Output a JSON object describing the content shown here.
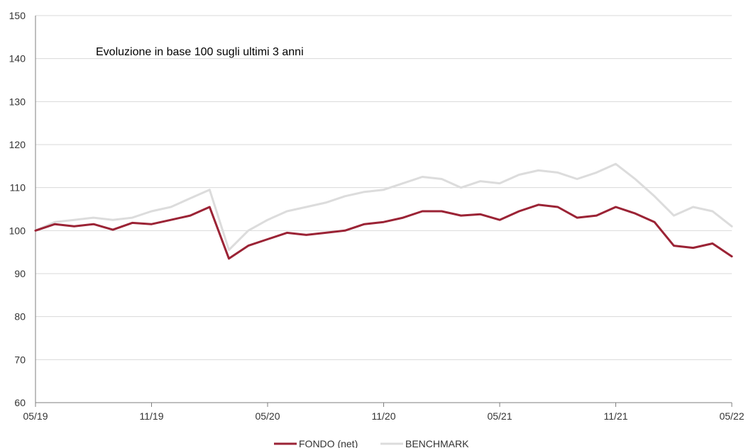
{
  "chart_data": {
    "type": "line",
    "title": "Evoluzione in base 100 sugli ultimi 3 anni",
    "xlabel": "",
    "ylabel": "",
    "x_ticks": [
      "05/19",
      "11/19",
      "05/20",
      "11/20",
      "05/21",
      "11/21",
      "05/22"
    ],
    "ylim": [
      60,
      150
    ],
    "y_ticks": [
      "60",
      "70",
      "80",
      "90",
      "100",
      "110",
      "120",
      "130",
      "140",
      "150"
    ],
    "grid": "horizontal",
    "legend_position": "bottom",
    "colors": {
      "fondo": "#9b2335",
      "benchmark": "#dcdcdc",
      "grid": "#d9d9d9",
      "axis": "#7f7f7f"
    },
    "x": [
      "05/19",
      "06/19",
      "07/19",
      "08/19",
      "09/19",
      "10/19",
      "11/19",
      "12/19",
      "01/20",
      "02/20",
      "03/20",
      "04/20",
      "05/20",
      "06/20",
      "07/20",
      "08/20",
      "09/20",
      "10/20",
      "11/20",
      "12/20",
      "01/21",
      "02/21",
      "03/21",
      "04/21",
      "05/21",
      "06/21",
      "07/21",
      "08/21",
      "09/21",
      "10/21",
      "11/21",
      "12/21",
      "01/22",
      "02/22",
      "03/22",
      "04/22",
      "05/22"
    ],
    "series": [
      {
        "name": "FONDO (net)",
        "values": [
          100,
          101.5,
          101,
          101.5,
          100.2,
          101.8,
          101.5,
          102.5,
          103.5,
          105.5,
          93.5,
          96.5,
          98,
          99.5,
          99,
          99.5,
          100,
          101.5,
          102,
          103,
          104.5,
          104.5,
          103.5,
          103.8,
          102.5,
          104.5,
          106,
          105.5,
          103,
          103.5,
          105.5,
          104,
          102,
          96.5,
          96,
          97,
          94
        ]
      },
      {
        "name": "BENCHMARK",
        "values": [
          100,
          102,
          102.5,
          103,
          102.5,
          103,
          104.5,
          105.5,
          107.5,
          109.5,
          95.5,
          100,
          102.5,
          104.5,
          105.5,
          106.5,
          108,
          109,
          109.5,
          111,
          112.5,
          112,
          110,
          111.5,
          111,
          113,
          114,
          113.5,
          112,
          113.5,
          115.5,
          112,
          108,
          103.5,
          105.5,
          104.5,
          101
        ]
      }
    ]
  }
}
